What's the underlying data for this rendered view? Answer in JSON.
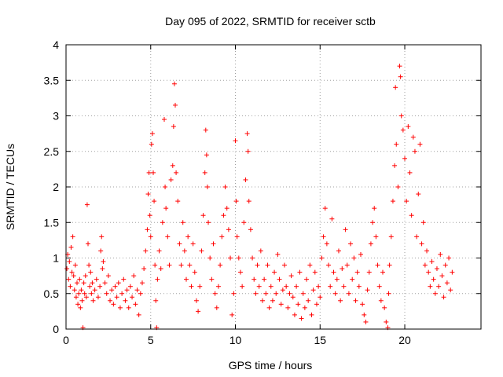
{
  "chart_data": {
    "type": "scatter",
    "title": "Day 095 of 2022, SRMTID for receiver sctb",
    "xlabel": "GPS time / hours",
    "ylabel": "SRMTID / TECUs",
    "xlim": [
      0,
      24.5
    ],
    "ylim": [
      0,
      4
    ],
    "xticks": [
      0,
      5,
      10,
      15,
      20
    ],
    "xtick_labels": [
      "0",
      "5",
      "10",
      "15",
      "20"
    ],
    "yticks": [
      0,
      0.5,
      1,
      1.5,
      2,
      2.5,
      3,
      3.5,
      4
    ],
    "ytick_labels": [
      "0",
      "0.5",
      "1",
      "1.5",
      "2",
      "2.5",
      "3",
      "3.5",
      "4"
    ],
    "grid": true,
    "marker": "+",
    "series_color": "#ff0000",
    "series": [
      {
        "name": "SRMTID",
        "points": [
          [
            0.05,
            0.85
          ],
          [
            0.1,
            1.05
          ],
          [
            0.15,
            0.7
          ],
          [
            0.2,
            0.95
          ],
          [
            0.25,
            0.6
          ],
          [
            0.3,
            1.15
          ],
          [
            0.35,
            0.8
          ],
          [
            0.4,
            1.3
          ],
          [
            0.45,
            0.75
          ],
          [
            0.5,
            0.55
          ],
          [
            0.55,
            0.9
          ],
          [
            0.6,
            0.45
          ],
          [
            0.65,
            0.65
          ],
          [
            0.7,
            0.35
          ],
          [
            0.75,
            0.5
          ],
          [
            0.8,
            0.7
          ],
          [
            0.85,
            0.3
          ],
          [
            0.9,
            0.55
          ],
          [
            0.95,
            0.4
          ],
          [
            1.0,
            0.02
          ],
          [
            1.05,
            0.65
          ],
          [
            1.1,
            0.5
          ],
          [
            1.15,
            0.75
          ],
          [
            1.2,
            0.45
          ],
          [
            1.25,
            1.75
          ],
          [
            1.3,
            1.2
          ],
          [
            1.35,
            0.9
          ],
          [
            1.4,
            0.6
          ],
          [
            1.45,
            0.8
          ],
          [
            1.5,
            0.5
          ],
          [
            1.55,
            0.65
          ],
          [
            1.6,
            0.4
          ],
          [
            1.7,
            0.55
          ],
          [
            1.8,
            0.7
          ],
          [
            1.9,
            0.45
          ],
          [
            2.0,
            0.6
          ],
          [
            2.05,
            1.1
          ],
          [
            2.1,
            1.3
          ],
          [
            2.15,
            0.85
          ],
          [
            2.2,
            0.95
          ],
          [
            2.3,
            0.65
          ],
          [
            2.4,
            0.5
          ],
          [
            2.5,
            0.75
          ],
          [
            2.6,
            0.4
          ],
          [
            2.7,
            0.55
          ],
          [
            2.8,
            0.35
          ],
          [
            2.9,
            0.6
          ],
          [
            3.0,
            0.45
          ],
          [
            3.1,
            0.65
          ],
          [
            3.2,
            0.3
          ],
          [
            3.3,
            0.5
          ],
          [
            3.4,
            0.7
          ],
          [
            3.5,
            0.4
          ],
          [
            3.6,
            0.55
          ],
          [
            3.7,
            0.3
          ],
          [
            3.8,
            0.6
          ],
          [
            3.9,
            0.45
          ],
          [
            4.0,
            0.75
          ],
          [
            4.1,
            0.35
          ],
          [
            4.2,
            0.55
          ],
          [
            4.3,
            0.2
          ],
          [
            4.4,
            0.5
          ],
          [
            4.5,
            0.65
          ],
          [
            4.6,
            0.85
          ],
          [
            4.7,
            1.1
          ],
          [
            4.8,
            1.4
          ],
          [
            4.85,
            1.9
          ],
          [
            4.9,
            2.2
          ],
          [
            4.95,
            1.6
          ],
          [
            5.0,
            1.3
          ],
          [
            5.05,
            2.6
          ],
          [
            5.1,
            2.75
          ],
          [
            5.15,
            2.2
          ],
          [
            5.2,
            1.8
          ],
          [
            5.25,
            0.9
          ],
          [
            5.3,
            0.4
          ],
          [
            5.35,
            0.02
          ],
          [
            5.4,
            0.7
          ],
          [
            5.5,
            1.1
          ],
          [
            5.6,
            0.85
          ],
          [
            5.7,
            1.5
          ],
          [
            5.8,
            2.95
          ],
          [
            5.85,
            2.0
          ],
          [
            5.9,
            1.7
          ],
          [
            6.0,
            1.3
          ],
          [
            6.1,
            0.9
          ],
          [
            6.2,
            2.1
          ],
          [
            6.3,
            2.3
          ],
          [
            6.35,
            2.85
          ],
          [
            6.4,
            3.45
          ],
          [
            6.45,
            3.15
          ],
          [
            6.5,
            2.2
          ],
          [
            6.6,
            1.8
          ],
          [
            6.7,
            1.2
          ],
          [
            6.8,
            0.9
          ],
          [
            6.9,
            1.5
          ],
          [
            7.0,
            1.1
          ],
          [
            7.1,
            0.7
          ],
          [
            7.2,
            1.3
          ],
          [
            7.3,
            0.9
          ],
          [
            7.4,
            0.6
          ],
          [
            7.5,
            1.2
          ],
          [
            7.6,
            0.8
          ],
          [
            7.7,
            0.4
          ],
          [
            7.8,
            0.25
          ],
          [
            7.9,
            0.6
          ],
          [
            8.0,
            1.1
          ],
          [
            8.1,
            1.6
          ],
          [
            8.2,
            2.2
          ],
          [
            8.25,
            2.8
          ],
          [
            8.3,
            2.45
          ],
          [
            8.35,
            2.0
          ],
          [
            8.4,
            1.5
          ],
          [
            8.5,
            1.0
          ],
          [
            8.6,
            0.7
          ],
          [
            8.7,
            1.2
          ],
          [
            8.8,
            0.5
          ],
          [
            8.9,
            0.3
          ],
          [
            9.0,
            0.6
          ],
          [
            9.1,
            0.9
          ],
          [
            9.2,
            1.3
          ],
          [
            9.3,
            1.6
          ],
          [
            9.4,
            2.0
          ],
          [
            9.5,
            1.7
          ],
          [
            9.6,
            1.4
          ],
          [
            9.7,
            1.0
          ],
          [
            9.8,
            0.2
          ],
          [
            9.9,
            0.5
          ],
          [
            10.0,
            2.65
          ],
          [
            10.05,
            1.8
          ],
          [
            10.1,
            1.3
          ],
          [
            10.2,
            1.0
          ],
          [
            10.3,
            0.8
          ],
          [
            10.4,
            0.6
          ],
          [
            10.5,
            1.5
          ],
          [
            10.6,
            2.1
          ],
          [
            10.7,
            2.75
          ],
          [
            10.75,
            2.5
          ],
          [
            10.8,
            1.8
          ],
          [
            10.9,
            1.4
          ],
          [
            11.0,
            1.0
          ],
          [
            11.1,
            0.7
          ],
          [
            11.2,
            0.5
          ],
          [
            11.3,
            0.9
          ],
          [
            11.4,
            0.6
          ],
          [
            11.5,
            1.1
          ],
          [
            11.6,
            0.4
          ],
          [
            11.7,
            0.7
          ],
          [
            11.8,
            0.5
          ],
          [
            11.9,
            0.9
          ],
          [
            12.0,
            0.3
          ],
          [
            12.1,
            0.6
          ],
          [
            12.2,
            0.4
          ],
          [
            12.3,
            0.8
          ],
          [
            12.4,
            0.5
          ],
          [
            12.5,
            1.05
          ],
          [
            12.6,
            0.7
          ],
          [
            12.7,
            0.35
          ],
          [
            12.8,
            0.55
          ],
          [
            12.9,
            0.9
          ],
          [
            13.0,
            0.6
          ],
          [
            13.1,
            0.3
          ],
          [
            13.2,
            0.5
          ],
          [
            13.3,
            0.75
          ],
          [
            13.4,
            0.45
          ],
          [
            13.5,
            0.2
          ],
          [
            13.6,
            0.6
          ],
          [
            13.7,
            0.35
          ],
          [
            13.8,
            0.8
          ],
          [
            13.9,
            0.15
          ],
          [
            14.0,
            0.5
          ],
          [
            14.1,
            0.3
          ],
          [
            14.2,
            0.7
          ],
          [
            14.3,
            0.4
          ],
          [
            14.4,
            0.9
          ],
          [
            14.5,
            0.2
          ],
          [
            14.6,
            0.55
          ],
          [
            14.7,
            0.8
          ],
          [
            14.8,
            0.35
          ],
          [
            14.9,
            0.6
          ],
          [
            15.0,
            0.45
          ],
          [
            15.1,
            1.0
          ],
          [
            15.2,
            1.3
          ],
          [
            15.3,
            1.7
          ],
          [
            15.4,
            1.2
          ],
          [
            15.5,
            0.9
          ],
          [
            15.6,
            0.6
          ],
          [
            15.7,
            1.55
          ],
          [
            15.8,
            0.8
          ],
          [
            15.9,
            0.5
          ],
          [
            16.0,
            0.7
          ],
          [
            16.1,
            1.1
          ],
          [
            16.2,
            0.4
          ],
          [
            16.3,
            0.85
          ],
          [
            16.4,
            0.6
          ],
          [
            16.5,
            1.4
          ],
          [
            16.6,
            0.9
          ],
          [
            16.7,
            0.5
          ],
          [
            16.8,
            1.2
          ],
          [
            16.9,
            0.7
          ],
          [
            17.0,
            1.0
          ],
          [
            17.1,
            0.4
          ],
          [
            17.2,
            0.8
          ],
          [
            17.3,
            0.6
          ],
          [
            17.4,
            1.05
          ],
          [
            17.5,
            0.35
          ],
          [
            17.6,
            0.2
          ],
          [
            17.7,
            0.1
          ],
          [
            17.8,
            0.55
          ],
          [
            17.9,
            0.8
          ],
          [
            18.0,
            1.2
          ],
          [
            18.1,
            1.5
          ],
          [
            18.2,
            1.7
          ],
          [
            18.3,
            1.3
          ],
          [
            18.4,
            0.9
          ],
          [
            18.5,
            0.6
          ],
          [
            18.6,
            0.4
          ],
          [
            18.7,
            0.8
          ],
          [
            18.8,
            0.3
          ],
          [
            18.9,
            0.1
          ],
          [
            19.0,
            0.02
          ],
          [
            19.05,
            0.5
          ],
          [
            19.1,
            0.9
          ],
          [
            19.2,
            1.3
          ],
          [
            19.3,
            1.8
          ],
          [
            19.4,
            2.3
          ],
          [
            19.45,
            3.4
          ],
          [
            19.5,
            2.6
          ],
          [
            19.6,
            2.0
          ],
          [
            19.7,
            3.7
          ],
          [
            19.75,
            3.55
          ],
          [
            19.8,
            3.0
          ],
          [
            19.9,
            2.8
          ],
          [
            20.0,
            2.4
          ],
          [
            20.1,
            1.8
          ],
          [
            20.2,
            2.85
          ],
          [
            20.3,
            2.2
          ],
          [
            20.4,
            1.6
          ],
          [
            20.5,
            2.7
          ],
          [
            20.6,
            2.5
          ],
          [
            20.7,
            1.3
          ],
          [
            20.8,
            1.9
          ],
          [
            20.9,
            2.6
          ],
          [
            21.0,
            1.2
          ],
          [
            21.1,
            1.5
          ],
          [
            21.2,
            0.9
          ],
          [
            21.3,
            1.1
          ],
          [
            21.4,
            0.8
          ],
          [
            21.5,
            0.6
          ],
          [
            21.6,
            0.95
          ],
          [
            21.7,
            0.7
          ],
          [
            21.8,
            0.5
          ],
          [
            21.9,
            0.85
          ],
          [
            22.0,
            0.6
          ],
          [
            22.1,
            1.05
          ],
          [
            22.2,
            0.75
          ],
          [
            22.3,
            0.45
          ],
          [
            22.4,
            0.9
          ],
          [
            22.5,
            0.65
          ],
          [
            22.6,
            1.0
          ],
          [
            22.7,
            0.55
          ],
          [
            22.8,
            0.8
          ]
        ]
      }
    ]
  }
}
